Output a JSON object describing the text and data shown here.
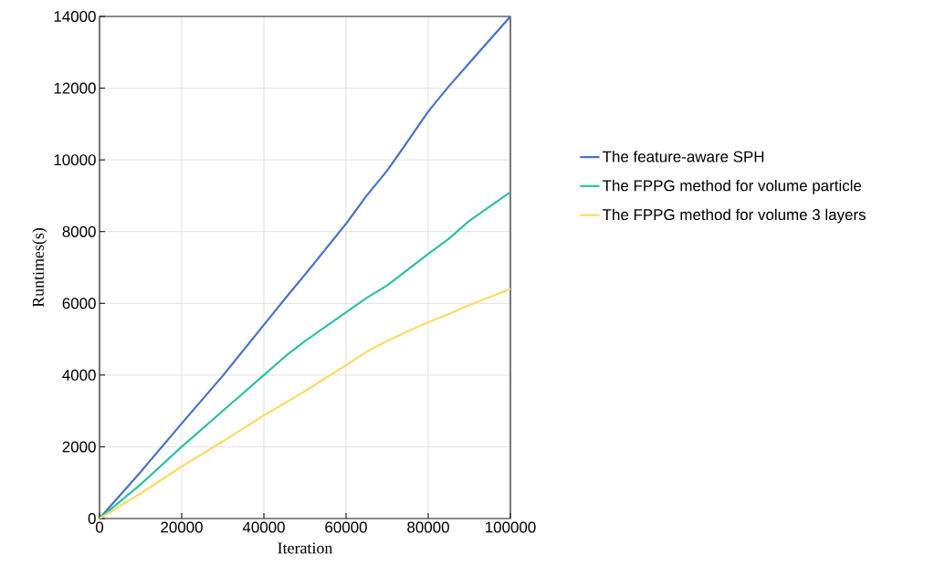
{
  "chart_data": {
    "type": "line",
    "xlabel": "Iteration",
    "ylabel": "Runtimes(s)",
    "x": [
      0,
      10000,
      20000,
      30000,
      40000,
      46000,
      50000,
      60000,
      65000,
      70000,
      74000,
      80000,
      85000,
      90000,
      100000
    ],
    "series": [
      {
        "name": "The feature-aware SPH",
        "color": "#4472c4",
        "values": [
          0,
          1300,
          2650,
          3980,
          5400,
          6250,
          6800,
          8220,
          9000,
          9700,
          10350,
          11350,
          12050,
          12700,
          14000
        ]
      },
      {
        "name": "The FPPG method for volume particle",
        "color": "#2ebfa5",
        "values": [
          0,
          950,
          2000,
          3000,
          4000,
          4600,
          4950,
          5750,
          6150,
          6500,
          6850,
          7380,
          7800,
          8300,
          9100
        ]
      },
      {
        "name": "The FPPG method for volume 3 layers",
        "color": "#ffd966",
        "values": [
          0,
          700,
          1450,
          2150,
          2875,
          3280,
          3550,
          4275,
          4650,
          4950,
          5165,
          5470,
          5700,
          5950,
          6400
        ]
      }
    ],
    "xlim": [
      0,
      100000
    ],
    "ylim": [
      0,
      14000
    ],
    "xticks": [
      0,
      20000,
      40000,
      60000,
      80000,
      100000
    ],
    "yticks": [
      0,
      2000,
      4000,
      6000,
      8000,
      10000,
      12000,
      14000
    ],
    "grid": true,
    "legend": "right",
    "marker": "none",
    "line_style": "solid"
  }
}
